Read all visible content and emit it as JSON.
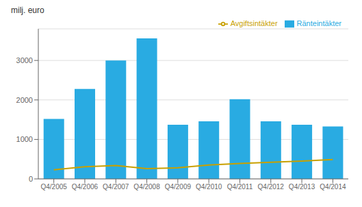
{
  "chart_data": {
    "type": "bar",
    "ylabel": "milj. euro",
    "categories": [
      "Q4/2005",
      "Q4/2006",
      "Q4/2007",
      "Q4/2008",
      "Q4/2009",
      "Q4/2010",
      "Q4/2011",
      "Q4/2012",
      "Q4/2013",
      "Q4/2014"
    ],
    "series": [
      {
        "name": "Ränteintäkter",
        "type": "bar",
        "color": "#29ABE2",
        "values": [
          1520,
          2280,
          3000,
          3560,
          1370,
          1460,
          2020,
          1460,
          1370,
          1330
        ]
      },
      {
        "name": "Avgiftsintäkter",
        "type": "line",
        "color": "#C8A000",
        "values": [
          230,
          310,
          340,
          260,
          280,
          350,
          390,
          420,
          450,
          490
        ]
      }
    ],
    "ylim": [
      0,
      3800
    ],
    "yticks": [
      0,
      1000,
      2000,
      3000
    ],
    "grid": true,
    "legend": "upper right"
  }
}
